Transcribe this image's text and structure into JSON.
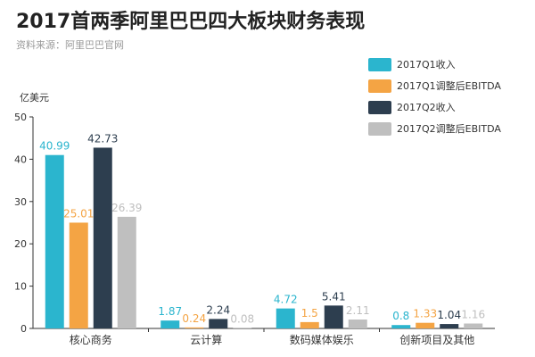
{
  "page": {
    "title": "2017首两季阿里巴巴四大板块财务表现",
    "subtitle": "资料来源：阿里巴巴官网"
  },
  "chart_data": {
    "type": "bar",
    "ylabel": "亿美元",
    "ylim": [
      0,
      50
    ],
    "yticks": [
      0,
      10,
      20,
      30,
      40,
      50
    ],
    "grid": false,
    "legend_position": "top-right",
    "categories": [
      "核心商务",
      "云计算",
      "数码媒体娱乐",
      "创新项目及其他"
    ],
    "series": [
      {
        "name": "2017Q1收入",
        "color": "#2bb5ce",
        "values": [
          40.99,
          1.87,
          4.72,
          0.8
        ]
      },
      {
        "name": "2017Q1调整后EBITDA",
        "color": "#f4a444",
        "values": [
          25.01,
          0.24,
          1.5,
          1.33
        ]
      },
      {
        "name": "2017Q2收入",
        "color": "#2d3e4f",
        "values": [
          42.73,
          2.24,
          5.41,
          1.04
        ]
      },
      {
        "name": "2017Q2调整后EBITDA",
        "color": "#bfbfbf",
        "values": [
          26.39,
          0.08,
          2.11,
          1.16
        ]
      }
    ]
  }
}
